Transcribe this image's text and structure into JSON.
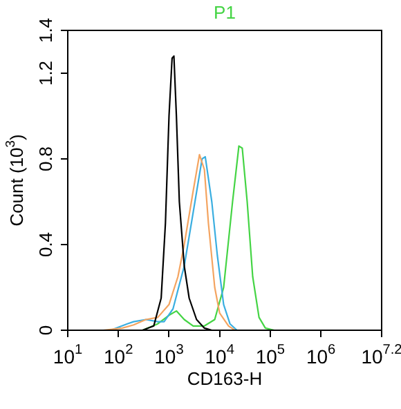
{
  "chart_data": {
    "type": "line",
    "title": "P1",
    "xlabel": "CD163-H",
    "ylabel": "Count (10$^{3}$)",
    "log": "x",
    "grid": false,
    "legend": false,
    "marker": "none",
    "xlim": [
      10,
      15848932
    ],
    "xticks": [
      {
        "value": 10,
        "label": "10$^{1}$"
      },
      {
        "value": 100,
        "label": "10$^{2}$"
      },
      {
        "value": 1000,
        "label": "10$^{3}$"
      },
      {
        "value": 10000,
        "label": "10$^{4}$"
      },
      {
        "value": 100000,
        "label": "10$^{5}$"
      },
      {
        "value": 1000000,
        "label": "10$^{6}$"
      },
      {
        "value": 15848932,
        "label": "10$^{7.2}$"
      }
    ],
    "ylim": [
      0,
      1.4
    ],
    "yticks": [
      0,
      0.4,
      0.8,
      1.2,
      1.4
    ],
    "series": [
      {
        "color": "#000000",
        "x": [
          300,
          500,
          700,
          850,
          1000,
          1150,
          1250,
          1400,
          1600,
          2000,
          2500,
          3500,
          5000,
          7000
        ],
        "values": [
          0,
          0.02,
          0.15,
          0.5,
          1.0,
          1.27,
          1.28,
          1.0,
          0.6,
          0.3,
          0.15,
          0.05,
          0.01,
          0
        ]
      },
      {
        "color": "#f4a460",
        "x": [
          50,
          120,
          200,
          350,
          600,
          1000,
          1500,
          2000,
          3000,
          4000,
          5000,
          6000,
          8000,
          10000,
          15000,
          20000
        ],
        "values": [
          0,
          0.01,
          0.025,
          0.05,
          0.06,
          0.12,
          0.25,
          0.4,
          0.65,
          0.82,
          0.75,
          0.5,
          0.2,
          0.08,
          0.02,
          0
        ]
      },
      {
        "color": "#3aaee0",
        "x": [
          70,
          150,
          200,
          350,
          600,
          800,
          1200,
          2000,
          3000,
          4500,
          5200,
          7000,
          9000,
          12000,
          16000,
          22000
        ],
        "values": [
          0,
          0.03,
          0.04,
          0.05,
          0.04,
          0.04,
          0.1,
          0.3,
          0.55,
          0.8,
          0.81,
          0.6,
          0.35,
          0.12,
          0.03,
          0
        ]
      },
      {
        "color": "#44d444",
        "x": [
          300,
          600,
          1000,
          1400,
          2000,
          3000,
          5000,
          8000,
          12000,
          18000,
          24000,
          28000,
          35000,
          45000,
          60000,
          80000,
          120000
        ],
        "values": [
          0,
          0.03,
          0.07,
          0.09,
          0.05,
          0.02,
          0.02,
          0.05,
          0.2,
          0.6,
          0.86,
          0.85,
          0.6,
          0.25,
          0.06,
          0.01,
          0
        ]
      }
    ]
  }
}
